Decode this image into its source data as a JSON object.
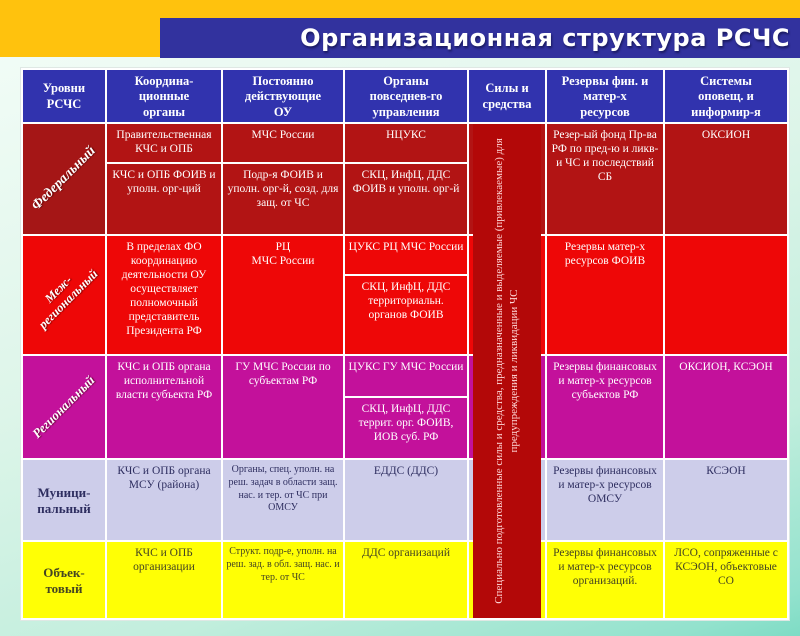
{
  "title": "Организационная структура РСЧС",
  "colors": {
    "top_band": "#ffc20d",
    "title_bar": "#32329e",
    "header_cell": "#3133ae",
    "federal_row": "#b21414",
    "interregional_row": "#ee0707",
    "regional_row": "#c3119b",
    "municipal_row": "#cdcdea",
    "object_row": "#ffff05",
    "forces_column": "#b30808"
  },
  "table": {
    "headers": [
      "Уровни\nРСЧС",
      "Координа-\nционные\nорганы",
      "Постоянно\nдействующие\nОУ",
      "Органы\nповседнев-го\nуправления",
      "Силы и\nсредства",
      "Резервы фин. и\nматер-х\nресурсов",
      "Системы\nоповещ. и\nинформир-я"
    ],
    "forces_text": "Специально подготовленные силы и средства, предназначенные и выделяемые (привлекаемые) для предупреждения и ликвидации ЧС",
    "rows": {
      "federal": {
        "level": "Федеральный",
        "coord_gov": "Правительственная КЧС и ОПБ",
        "perm_gov": "МЧС России",
        "daily_gov": "НЦУКС",
        "coord_foiv": "КЧС и ОПБ ФОИВ и уполн. орг-ций",
        "perm_foiv": "Подр-я ФОИВ и уполн. орг-й, созд. для защ. от ЧС",
        "daily_foiv": "СКЦ, ИнфЦ, ДДС ФОИВ и уполн. орг-й",
        "reserves": "Резер-ый фонд Пр-ва РФ по пред-ю и ликв-и ЧС и последствий СБ",
        "systems": "ОКСИОН"
      },
      "interregional": {
        "level": "Меж-\nрегиональный",
        "coord": "В пределах ФО координацию деятельности ОУ осуществляет полномочный представитель Президента РФ",
        "perm": "РЦ\nМЧС России",
        "daily_cuks": "ЦУКС РЦ МЧС России",
        "daily_skc": "СКЦ, ИнфЦ, ДДС территориальн. органов ФОИВ",
        "reserves": "Резервы матер-х ресурсов ФОИВ",
        "systems": ""
      },
      "regional": {
        "level": "Региональный",
        "coord": "КЧС и ОПБ органа исполнительной власти субъекта РФ",
        "perm": "ГУ МЧС России по субъектам РФ",
        "daily_cuks": "ЦУКС ГУ МЧС России",
        "daily_skc": "СКЦ, ИнфЦ, ДДС террит. орг. ФОИВ, ИОВ суб. РФ",
        "reserves": "Резервы финансовых и матер-х ресурсов субъектов РФ",
        "systems": "ОКСИОН, КСЭОН"
      },
      "municipal": {
        "level": "Муници-\nпальный",
        "coord": "КЧС и ОПБ органа МСУ (района)",
        "perm": "Органы, спец. уполн. на реш. задач в области защ. нас. и тер. от ЧС при ОМСУ",
        "daily": "ЕДДС (ДДС)",
        "reserves": "Резервы финансовых и матер-х ресурсов ОМСУ",
        "systems": "КСЭОН"
      },
      "object": {
        "level": "Объек-\nтовый",
        "coord": "КЧС и ОПБ организации",
        "perm": "Структ. подр-е, уполн. на реш. зад. в обл. защ. нас. и тер. от ЧС",
        "daily": "ДДС организаций",
        "reserves": "Резервы финансовых и матер-х ресурсов организаций.",
        "systems": "ЛСО, сопряженные с КСЭОН, объектовые СО"
      }
    }
  }
}
